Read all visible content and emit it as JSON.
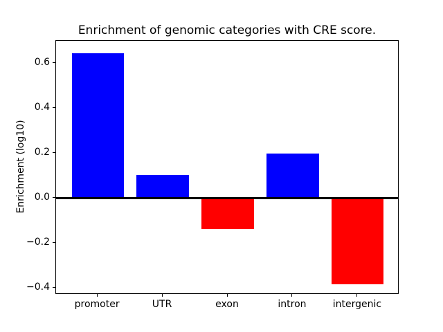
{
  "chart_data": {
    "type": "bar",
    "title": "Enrichment of genomic categories with CRE score.",
    "xlabel": "",
    "ylabel": "Enrichment (log10)",
    "categories": [
      "promoter",
      "UTR",
      "exon",
      "intron",
      "intergenic"
    ],
    "values": [
      0.645,
      0.104,
      -0.139,
      0.197,
      -0.383
    ],
    "bar_colors": [
      "#0000ff",
      "#0000ff",
      "#ff0000",
      "#0000ff",
      "#ff0000"
    ],
    "positive_color": "#0000ff",
    "negative_color": "#ff0000",
    "bar_width": 0.8,
    "xlim": [
      -0.64,
      4.64
    ],
    "ylim": [
      -0.43,
      0.7
    ],
    "ytick_values": [
      0.6,
      0.4,
      0.2,
      0.0,
      -0.2,
      -0.4
    ],
    "ytick_labels": [
      "0.6",
      "0.4",
      "0.2",
      "0.0",
      "−0.2",
      "−0.4"
    ],
    "zero_line": {
      "value": 0,
      "color": "#000000"
    },
    "grid": false,
    "legend": false,
    "spine_color": "#000000",
    "plot_background": "#ffffff"
  }
}
